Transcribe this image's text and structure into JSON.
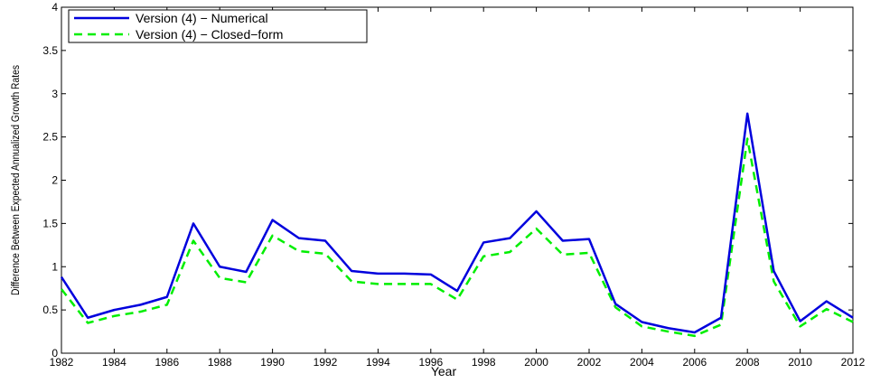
{
  "chart_data": {
    "type": "line",
    "xlabel": "Year",
    "ylabel": "Difference Between Expected Annualized Growth Rates",
    "xlim": [
      1982,
      2012
    ],
    "ylim": [
      0,
      4
    ],
    "xticks": [
      1982,
      1984,
      1986,
      1988,
      1990,
      1992,
      1994,
      1996,
      1998,
      2000,
      2002,
      2004,
      2006,
      2008,
      2010,
      2012
    ],
    "yticks": [
      0,
      0.5,
      1,
      1.5,
      2,
      2.5,
      3,
      3.5,
      4
    ],
    "x": [
      1982,
      1983,
      1984,
      1985,
      1986,
      1987,
      1988,
      1989,
      1990,
      1991,
      1992,
      1993,
      1994,
      1995,
      1996,
      1997,
      1998,
      1999,
      2000,
      2001,
      2002,
      2003,
      2004,
      2005,
      2006,
      2007,
      2008,
      2009,
      2010,
      2011,
      2012
    ],
    "series": [
      {
        "name": "Version (4) − Numerical",
        "color": "#0000dd",
        "style": "solid",
        "values": [
          0.88,
          0.41,
          0.5,
          0.56,
          0.65,
          1.5,
          1.0,
          0.94,
          1.54,
          1.33,
          1.3,
          0.95,
          0.92,
          0.92,
          0.91,
          0.72,
          1.28,
          1.33,
          1.64,
          1.3,
          1.32,
          0.57,
          0.36,
          0.29,
          0.24,
          0.41,
          2.77,
          0.95,
          0.37,
          0.6,
          0.41
        ]
      },
      {
        "name": "Version (4) − Closed−form",
        "color": "#00ee00",
        "style": "dashed",
        "values": [
          0.74,
          0.35,
          0.43,
          0.48,
          0.56,
          1.3,
          0.87,
          0.82,
          1.36,
          1.18,
          1.15,
          0.83,
          0.8,
          0.8,
          0.8,
          0.62,
          1.12,
          1.17,
          1.44,
          1.14,
          1.16,
          0.53,
          0.31,
          0.25,
          0.2,
          0.33,
          2.48,
          0.83,
          0.31,
          0.51,
          0.36
        ]
      }
    ],
    "grid": false,
    "legend_position": "top-left"
  }
}
